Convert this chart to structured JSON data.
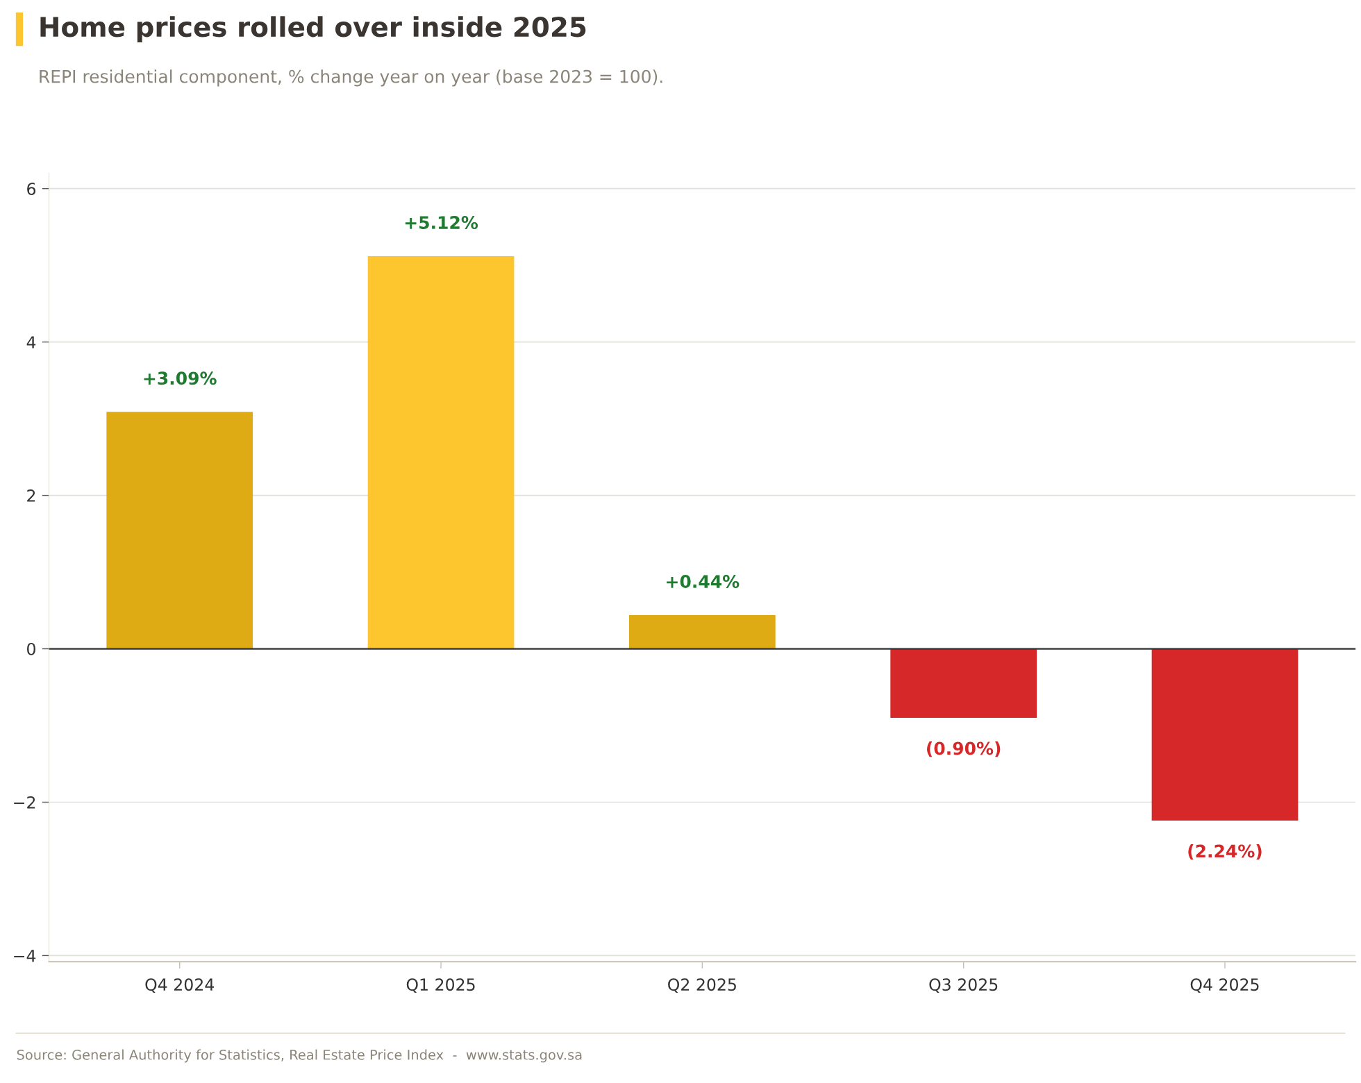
{
  "chart_data": {
    "type": "bar",
    "title": "Home prices rolled over inside 2025",
    "subtitle": "REPI residential component, % change year on year (base 2023 = 100).",
    "categories": [
      "Q4 2024",
      "Q1 2025",
      "Q2 2025",
      "Q3 2025",
      "Q4 2025"
    ],
    "values": [
      3.09,
      5.12,
      0.44,
      -0.9,
      -2.24
    ],
    "colors": [
      "#dfab14",
      "#fdc52e",
      "#dfab14",
      "#d62828",
      "#d62828"
    ],
    "value_labels": [
      "+3.09%",
      "+5.12%",
      "+0.44%",
      "(0.90%)",
      "(2.24%)"
    ],
    "ylim": [
      -4.08,
      6.2
    ],
    "yticks": [
      {
        "value": -4,
        "label": "−4"
      },
      {
        "value": -2,
        "label": "−2"
      },
      0,
      2,
      4,
      6
    ],
    "grid": "y",
    "ref_lines": [
      {
        "axis": "y",
        "value": 0,
        "label": null,
        "color": "#333333"
      }
    ],
    "annotations": [
      "Source: General Authority for Statistics, Real Estate Price Index  -  www.stats.gov.sa"
    ]
  }
}
